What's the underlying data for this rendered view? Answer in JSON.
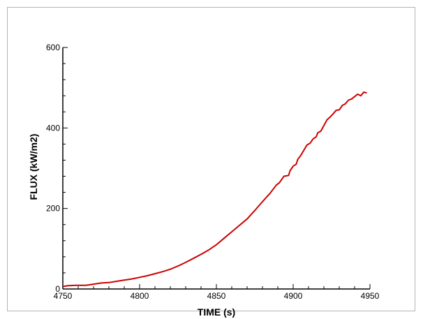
{
  "chart_data": {
    "type": "line",
    "title": "",
    "xlabel": "TIME (s)",
    "ylabel": "FLUX (kW/m2)",
    "xlim": [
      4750,
      4950
    ],
    "ylim": [
      0,
      600
    ],
    "x_ticks": [
      4750,
      4800,
      4850,
      4900,
      4950
    ],
    "y_ticks": [
      0,
      200,
      400,
      600
    ],
    "x_tick_labels": [
      "4750",
      "4800",
      "4850",
      "4900",
      "4950"
    ],
    "y_tick_labels": [
      "0",
      "200",
      "400",
      "600"
    ],
    "grid": false,
    "legend": "none",
    "series": [
      {
        "color": "#cc0000",
        "x": [
          4750,
          4753,
          4758,
          4765,
          4770,
          4775,
          4780,
          4785,
          4790,
          4795,
          4800,
          4805,
          4810,
          4815,
          4820,
          4825,
          4830,
          4835,
          4840,
          4845,
          4850,
          4855,
          4860,
          4865,
          4870,
          4875,
          4880,
          4885,
          4889,
          4891,
          4894,
          4897,
          4898,
          4900,
          4902,
          4903,
          4905,
          4907,
          4909,
          4911,
          4913,
          4915,
          4916,
          4918,
          4920,
          4922,
          4924,
          4926,
          4928,
          4930,
          4932,
          4934,
          4936,
          4938,
          4940,
          4942,
          4944,
          4946,
          4948
        ],
        "y": [
          6,
          8,
          9,
          9,
          12,
          15,
          16,
          19,
          22,
          25,
          29,
          33,
          38,
          43,
          49,
          57,
          66,
          76,
          86,
          97,
          110,
          126,
          142,
          158,
          174,
          195,
          217,
          238,
          258,
          264,
          280,
          282,
          294,
          305,
          310,
          322,
          332,
          345,
          358,
          362,
          373,
          378,
          388,
          392,
          406,
          420,
          427,
          435,
          444,
          445,
          456,
          460,
          469,
          472,
          478,
          484,
          480,
          489,
          487
        ]
      }
    ]
  }
}
